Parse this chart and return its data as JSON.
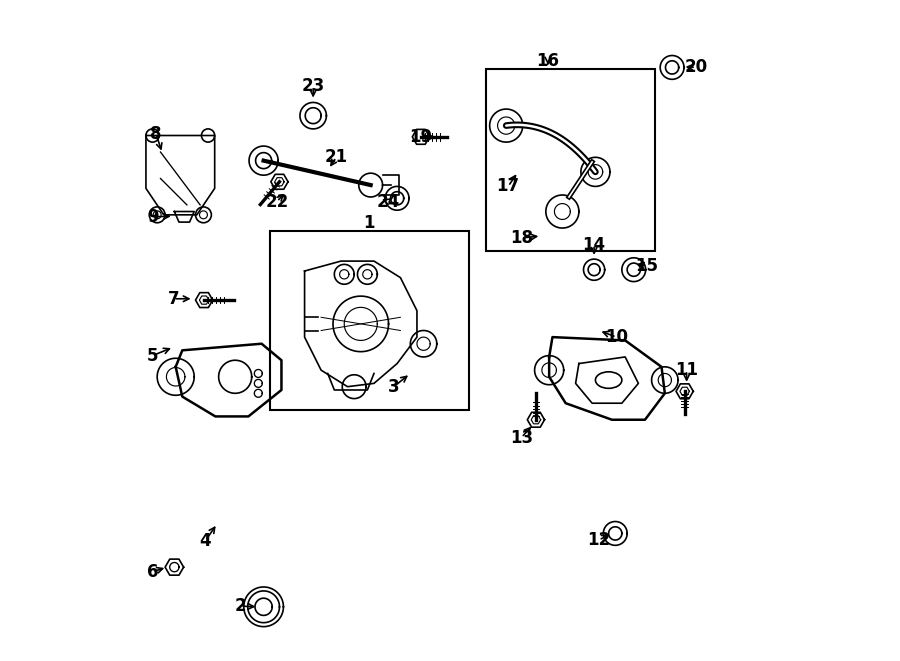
{
  "background_color": "#ffffff",
  "line_color": "#000000",
  "label_color": "#000000",
  "fig_width": 9.0,
  "fig_height": 6.61,
  "dpi": 100,
  "label_offsets": {
    "1": [
      0.378,
      0.663,
      false,
      null,
      null
    ],
    "2": [
      0.183,
      0.083,
      true,
      0.21,
      0.082
    ],
    "3": [
      0.415,
      0.415,
      true,
      0.44,
      0.435
    ],
    "4": [
      0.13,
      0.182,
      true,
      0.148,
      0.208
    ],
    "5": [
      0.05,
      0.462,
      true,
      0.082,
      0.475
    ],
    "6": [
      0.05,
      0.135,
      true,
      0.072,
      0.142
    ],
    "7": [
      0.082,
      0.548,
      true,
      0.112,
      0.548
    ],
    "8": [
      0.055,
      0.798,
      true,
      0.065,
      0.768
    ],
    "9": [
      0.05,
      0.672,
      true,
      0.082,
      0.673
    ],
    "10": [
      0.752,
      0.49,
      true,
      0.725,
      0.5
    ],
    "11": [
      0.858,
      0.44,
      true,
      0.858,
      0.418
    ],
    "12": [
      0.725,
      0.183,
      true,
      0.745,
      0.193
    ],
    "13": [
      0.608,
      0.338,
      true,
      0.626,
      0.358
    ],
    "14": [
      0.718,
      0.63,
      true,
      0.718,
      0.61
    ],
    "15": [
      0.798,
      0.598,
      true,
      0.778,
      0.601
    ],
    "16": [
      0.648,
      0.908,
      true,
      0.648,
      0.898
    ],
    "17": [
      0.588,
      0.718,
      true,
      0.603,
      0.74
    ],
    "18": [
      0.608,
      0.64,
      true,
      0.638,
      0.643
    ],
    "19": [
      0.455,
      0.792,
      true,
      0.482,
      0.793
    ],
    "20": [
      0.872,
      0.898,
      true,
      0.852,
      0.899
    ],
    "21": [
      0.328,
      0.762,
      true,
      0.316,
      0.744
    ],
    "22": [
      0.238,
      0.695,
      true,
      0.252,
      0.71
    ],
    "23": [
      0.293,
      0.87,
      true,
      0.293,
      0.848
    ],
    "24": [
      0.407,
      0.695,
      true,
      0.393,
      0.7
    ]
  }
}
